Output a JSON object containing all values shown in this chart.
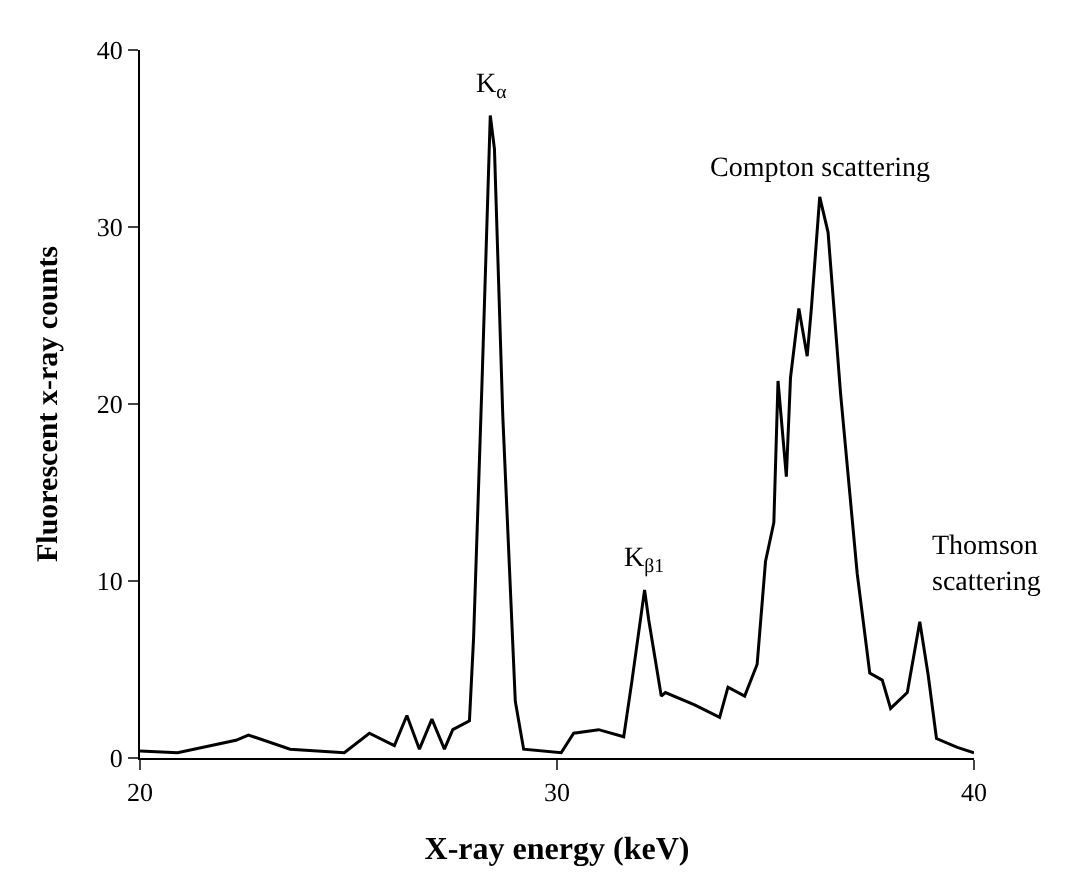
{
  "chart_data": {
    "type": "line",
    "xlabel": "X-ray energy (keV)",
    "ylabel": "Fluorescent x-ray counts",
    "xlim": [
      20,
      40
    ],
    "ylim": [
      0,
      40
    ],
    "xticks": [
      20,
      30,
      40
    ],
    "yticks": [
      0,
      10,
      20,
      30,
      40
    ],
    "marker": "none",
    "line_style": "solid",
    "series": [
      {
        "color": "#000000",
        "x": [
          20.0,
          20.9,
          22.3,
          22.6,
          23.6,
          24.9,
          25.5,
          26.1,
          26.4,
          26.7,
          27.0,
          27.3,
          27.5,
          27.9,
          28.0,
          28.2,
          28.4,
          28.5,
          28.7,
          29.0,
          29.2,
          30.1,
          30.4,
          31.0,
          31.6,
          31.8,
          32.1,
          32.2,
          32.5,
          32.6,
          33.3,
          33.9,
          34.1,
          34.5,
          34.8,
          35.0,
          35.2,
          35.3,
          35.5,
          35.6,
          35.8,
          36.0,
          36.1,
          36.3,
          36.5,
          36.8,
          37.2,
          37.5,
          37.8,
          38.0,
          38.4,
          38.7,
          38.9,
          39.1,
          39.6,
          40.0
        ],
        "values": [
          0.4,
          0.3,
          1.0,
          1.3,
          0.5,
          0.3,
          1.4,
          0.7,
          2.4,
          0.5,
          2.2,
          0.5,
          1.6,
          2.1,
          6.8,
          21.1,
          36.3,
          34.4,
          19.3,
          3.2,
          0.5,
          0.3,
          1.4,
          1.6,
          1.2,
          4.4,
          9.5,
          7.8,
          3.5,
          3.7,
          3.0,
          2.3,
          4.0,
          3.5,
          5.3,
          11.1,
          13.3,
          21.3,
          15.9,
          21.5,
          25.4,
          22.7,
          25.4,
          31.7,
          29.7,
          20.6,
          10.4,
          4.8,
          4.4,
          2.8,
          3.7,
          7.7,
          4.7,
          1.1,
          0.6,
          0.3
        ]
      }
    ],
    "annotations": [
      {
        "text": "K$_{α}$",
        "x": 28.4,
        "y": 36.3
      },
      {
        "text": "K$_{β1}$",
        "x": 32.1,
        "y": 9.5
      },
      {
        "text": "Compton scattering",
        "x": 36.3,
        "y": 31.7
      },
      "Thomson\nscattering"
    ]
  }
}
